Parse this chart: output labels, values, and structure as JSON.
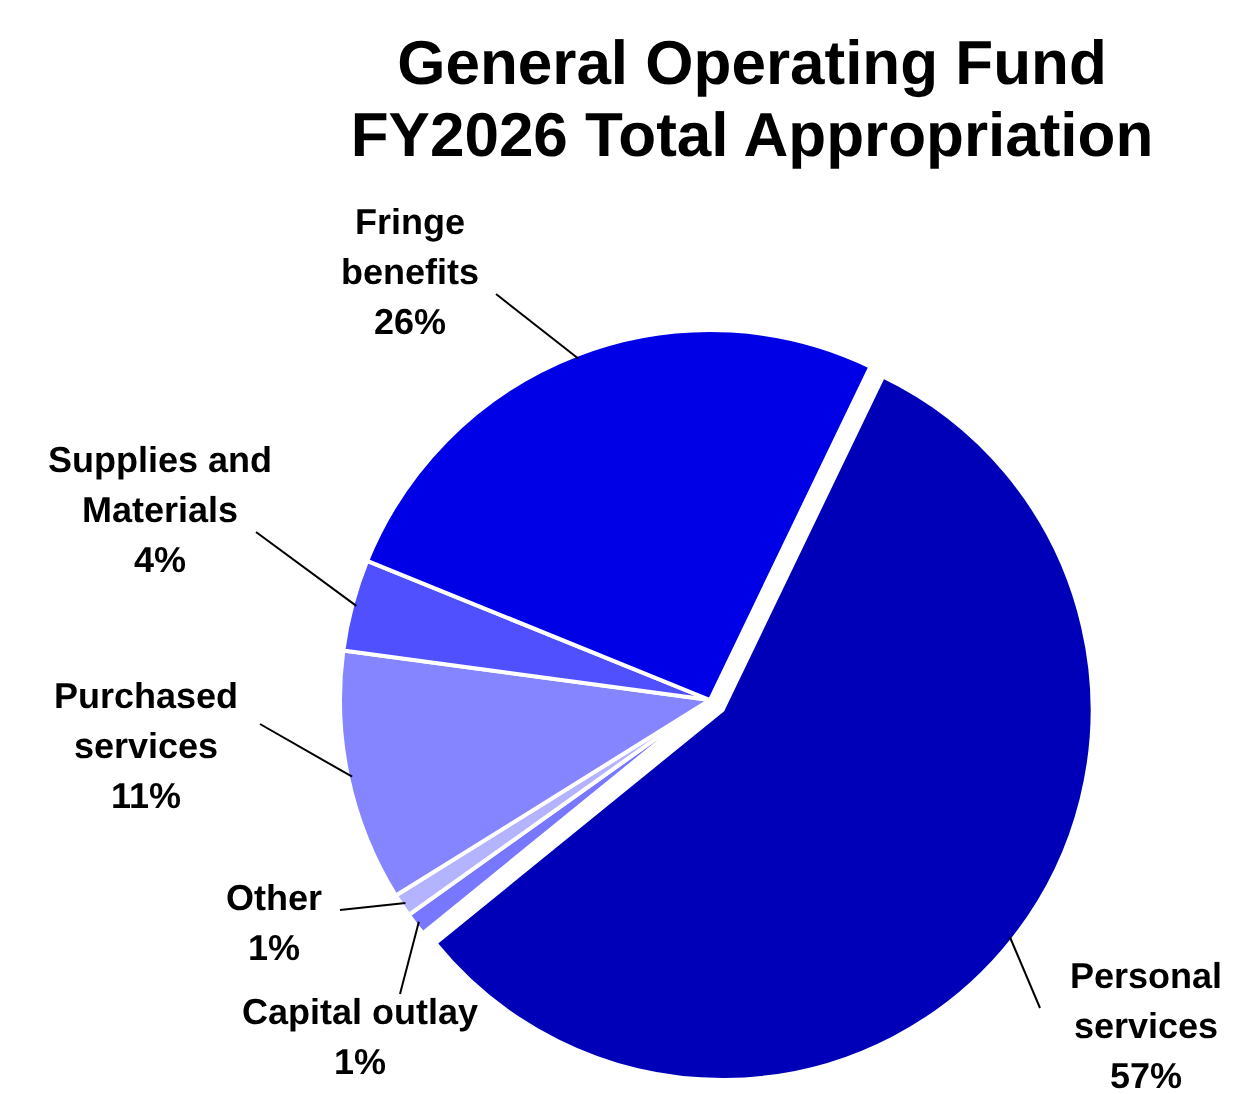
{
  "chart_data": {
    "type": "pie",
    "title": "General Operating Fund\nFY2026 Total Appropriation",
    "categories": [
      "Personal services",
      "Capital outlay",
      "Other",
      "Purchased services",
      "Supplies and Materials",
      "Fringe benefits"
    ],
    "values": [
      57,
      1,
      1,
      11,
      4,
      26
    ],
    "value_labels": [
      "57%",
      "1%",
      "1%",
      "11%",
      "4%",
      "26%"
    ],
    "colors": [
      "#0000b8",
      "#7777ff",
      "#b3b3ff",
      "#8585ff",
      "#5050ff",
      "#0000e6"
    ],
    "legend": false
  }
}
